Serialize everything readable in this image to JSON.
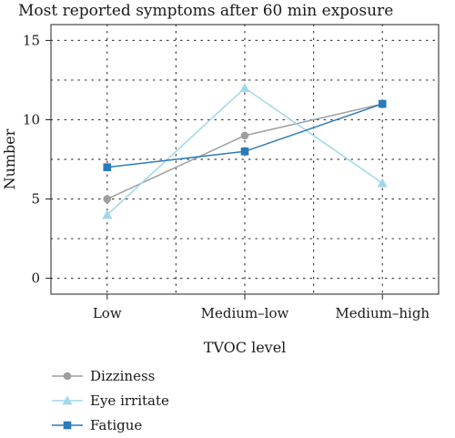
{
  "chart_data": {
    "type": "line",
    "title": "Most reported symptoms after 60 min exposure",
    "xlabel": "TVOC level",
    "ylabel": "Number",
    "categories": [
      "Low",
      "Medium–low",
      "Medium–high"
    ],
    "ylim": [
      -1,
      16
    ],
    "yticks": [
      0,
      5,
      10,
      15
    ],
    "grid": true,
    "legend_position": "bottom-left",
    "series": [
      {
        "name": "Dizziness",
        "values": [
          5,
          9,
          11
        ],
        "color": "#9e9e9e",
        "marker": "circle"
      },
      {
        "name": "Eye irritate",
        "values": [
          4,
          12,
          6
        ],
        "color": "#9fd8ea",
        "marker": "triangle"
      },
      {
        "name": "Fatigue",
        "values": [
          7,
          8,
          11
        ],
        "color": "#2b7bb9",
        "marker": "square"
      }
    ]
  }
}
